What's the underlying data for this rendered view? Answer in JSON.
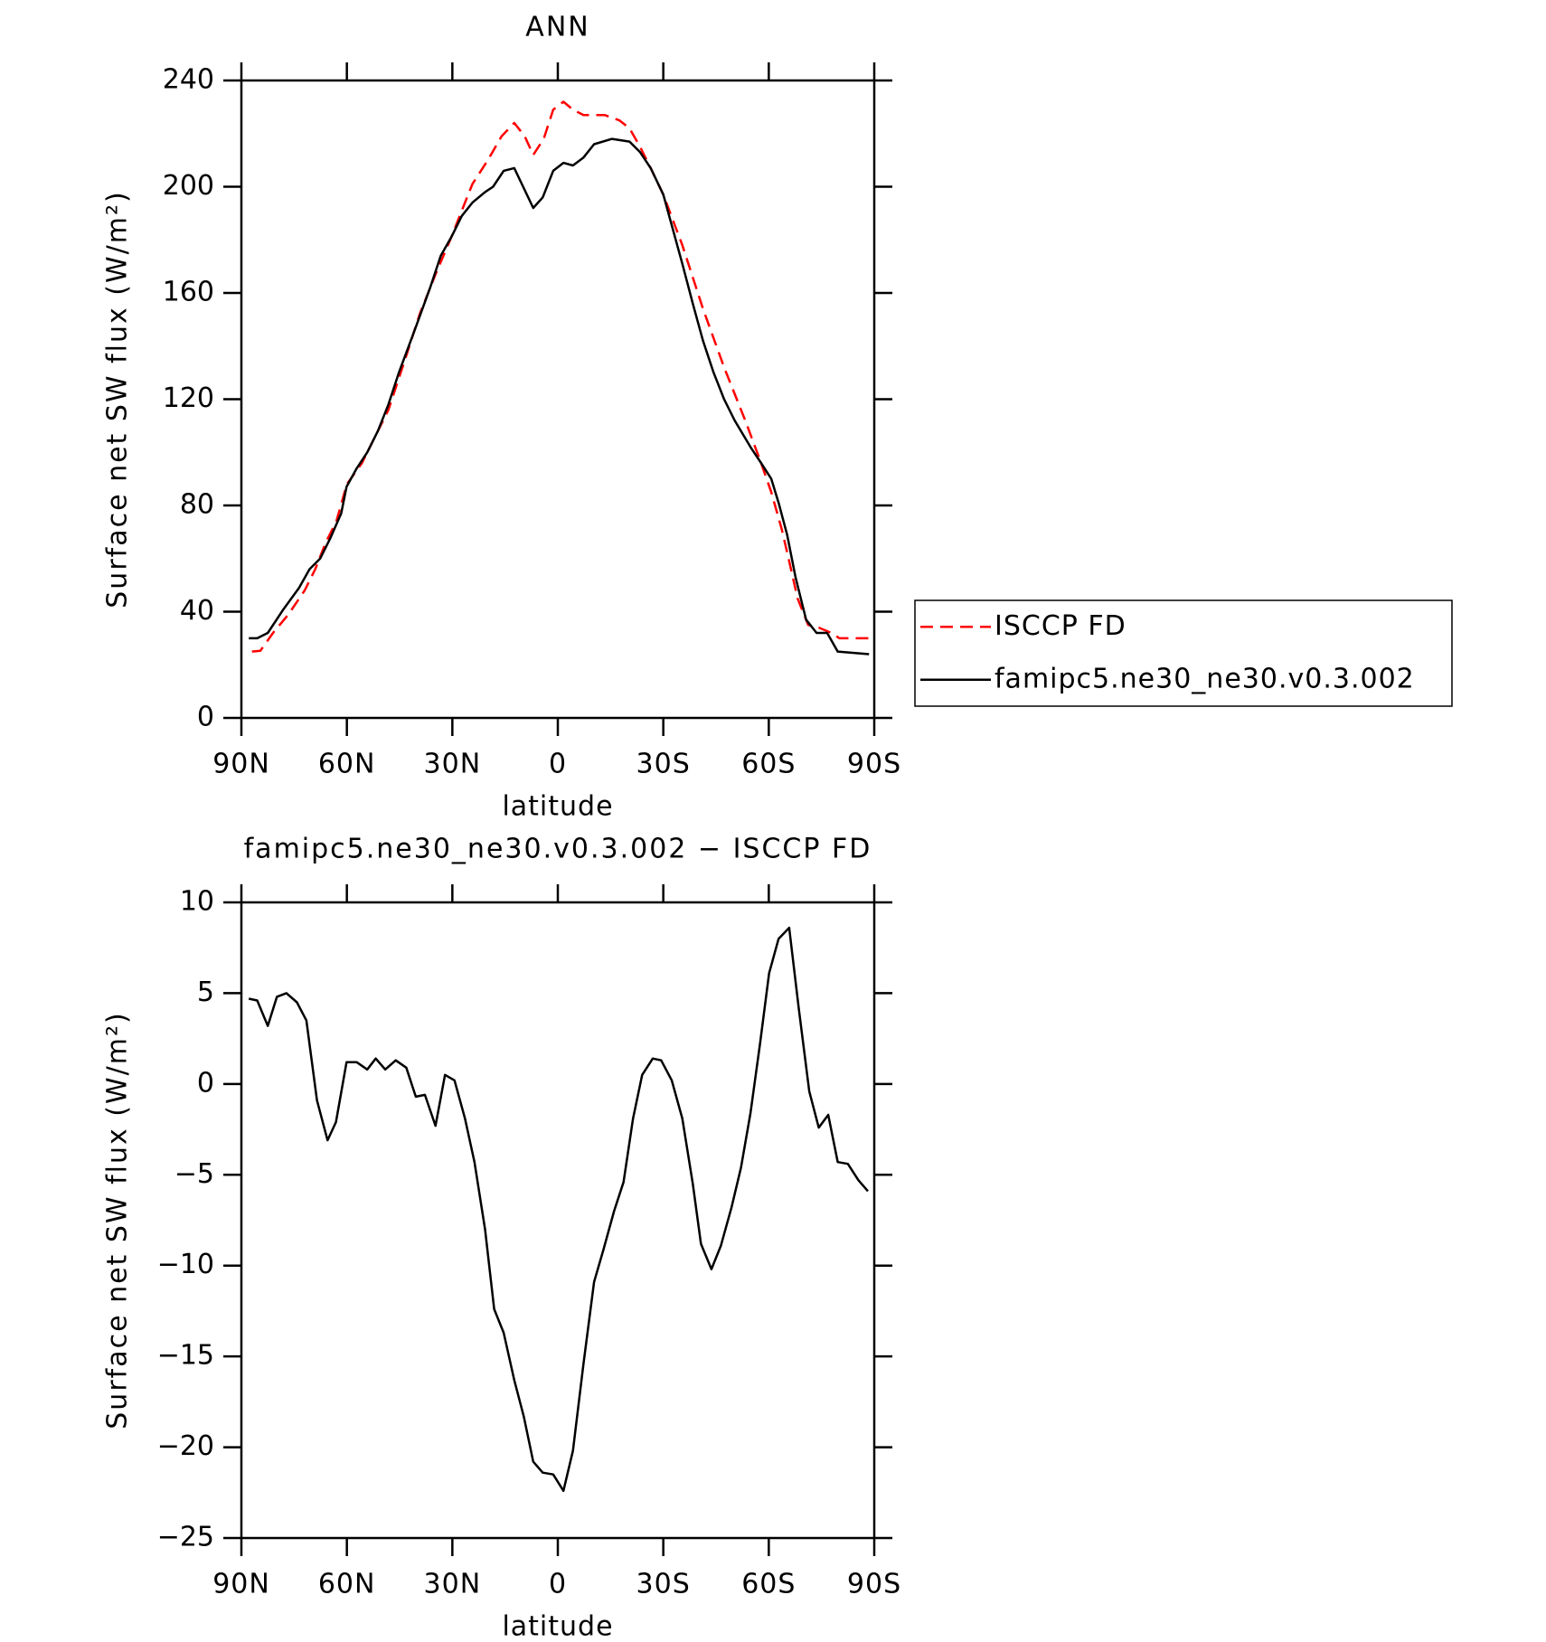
{
  "chart_data": [
    {
      "type": "line",
      "title": "ANN",
      "x_label": "latitude",
      "y_label": "Surface net SW flux (W/m²)",
      "xlim": [
        90,
        -90
      ],
      "xticks": [
        {
          "value": 90,
          "label": "90N"
        },
        {
          "value": 60,
          "label": "60N"
        },
        {
          "value": 30,
          "label": "30N"
        },
        0,
        {
          "value": -30,
          "label": "30S"
        },
        {
          "value": -60,
          "label": "60S"
        },
        {
          "value": -90,
          "label": "90S"
        }
      ],
      "ylim": [
        0,
        240
      ],
      "yticks": [
        0,
        40,
        80,
        120,
        160,
        200,
        240
      ],
      "legend": "right",
      "series": [
        {
          "name": "ISCCP FD",
          "color": "#ff0000",
          "line_style": "dashed",
          "x": [
            87,
            84.6,
            81,
            76.6,
            72,
            69,
            66,
            63,
            60,
            55.7,
            52.7,
            48.2,
            43.7,
            39.3,
            34.8,
            30.3,
            27.3,
            24.3,
            19.9,
            16,
            12.4,
            9.4,
            7,
            4,
            1.3,
            -1.6,
            -4.3,
            -7.3,
            -13.3,
            -17.5,
            -20.4,
            -23.4,
            -26.4,
            -30,
            -35.4,
            -41.3,
            -47.3,
            -53.3,
            -57.8,
            -60.7,
            -63.7,
            -65.8,
            -68.2,
            -71.2,
            -74.2,
            -77.8,
            -80.1,
            -84.6,
            -88.5
          ],
          "values": [
            25,
            25.3,
            32,
            39,
            48,
            56,
            66,
            74,
            88,
            96,
            104,
            116,
            134,
            152,
            167,
            181,
            191,
            201,
            210,
            219,
            224,
            219,
            212,
            218,
            229,
            232,
            229,
            227,
            227,
            225,
            222,
            215,
            207,
            197,
            178,
            154,
            132,
            112,
            96,
            85,
            71,
            59,
            45,
            35,
            34,
            32,
            30,
            30,
            30
          ]
        },
        {
          "name": "famipc5.ne30_ne30.v0.3.002",
          "color": "#000000",
          "line_style": "solid",
          "x": [
            87.9,
            85.5,
            82.5,
            78,
            73.6,
            70.6,
            67.6,
            64.6,
            61.6,
            60.1,
            57.2,
            54.2,
            51.2,
            48.2,
            45.2,
            40.7,
            36.3,
            33.3,
            30.3,
            27.3,
            24.3,
            20.7,
            18.4,
            15.4,
            12.4,
            7,
            4.3,
            1.3,
            -1.6,
            -4.3,
            -7.3,
            -10.3,
            -15.4,
            -20.4,
            -23.4,
            -26.4,
            -30,
            -35.4,
            -38.4,
            -41.3,
            -44.3,
            -47.3,
            -50.3,
            -54.8,
            -57.8,
            -60.7,
            -62.8,
            -65.2,
            -67.6,
            -70.6,
            -73.6,
            -76.6,
            -79.6,
            -88.5
          ],
          "values": [
            30,
            30,
            32,
            41,
            49,
            56,
            60,
            68,
            77,
            87,
            94,
            100,
            108,
            118,
            130,
            146,
            162,
            174,
            181,
            189,
            194,
            198,
            200,
            206,
            207,
            192,
            196,
            206,
            209,
            208,
            211,
            216,
            218,
            217,
            213,
            207,
            197,
            171,
            156,
            142,
            130,
            120,
            112,
            102,
            96,
            90,
            81,
            69,
            53,
            37,
            32,
            32,
            25,
            24
          ]
        }
      ]
    },
    {
      "type": "line",
      "title": "famipc5.ne30_ne30.v0.3.002 − ISCCP FD",
      "x_label": "latitude",
      "y_label": "Surface net SW flux (W/m²)",
      "xlim": [
        90,
        -90
      ],
      "xticks": [
        {
          "value": 90,
          "label": "90N"
        },
        {
          "value": 60,
          "label": "60N"
        },
        {
          "value": 30,
          "label": "30N"
        },
        0,
        {
          "value": -30,
          "label": "30S"
        },
        {
          "value": -60,
          "label": "60S"
        },
        {
          "value": -90,
          "label": "90S"
        }
      ],
      "ylim": [
        -25,
        10
      ],
      "yticks": [
        {
          "value": -25,
          "label": "−25"
        },
        {
          "value": -20,
          "label": "−20"
        },
        {
          "value": -15,
          "label": "−15"
        },
        {
          "value": -10,
          "label": "−10"
        },
        {
          "value": -5,
          "label": "−5"
        },
        0,
        5,
        10
      ],
      "color": "#000000",
      "x": [
        87.9,
        85.5,
        82.5,
        79.9,
        77.2,
        74.2,
        71.5,
        68.5,
        65.5,
        63.1,
        60.1,
        57.2,
        54.2,
        51.8,
        49.1,
        46.1,
        43.1,
        40.4,
        37.8,
        34.8,
        32.1,
        29.4,
        26.4,
        23.7,
        20.7,
        18.1,
        15.4,
        12.4,
        9.7,
        7,
        4.3,
        1.3,
        -1.6,
        -4.3,
        -7.3,
        -10.3,
        -13,
        -16,
        -18.7,
        -21.4,
        -24,
        -27,
        -29.4,
        -32.4,
        -35.4,
        -38.4,
        -40.7,
        -43.7,
        -46.4,
        -49.4,
        -52.1,
        -54.8,
        -57.5,
        -60.1,
        -62.8,
        -65.8,
        -68.5,
        -71.5,
        -74.2,
        -76.9,
        -79.6,
        -82.5,
        -85.5,
        -88.2
      ],
      "values": [
        4.7,
        4.6,
        3.2,
        4.8,
        5.0,
        4.5,
        3.5,
        -0.9,
        -3.1,
        -2.1,
        1.2,
        1.2,
        0.8,
        1.4,
        0.8,
        1.3,
        0.9,
        -0.7,
        -0.6,
        -2.3,
        0.5,
        0.2,
        -1.9,
        -4.3,
        -8.0,
        -12.4,
        -13.7,
        -16.3,
        -18.3,
        -20.8,
        -21.4,
        -21.5,
        -22.4,
        -20.2,
        -15.4,
        -10.9,
        -9.1,
        -7.0,
        -5.4,
        -1.9,
        0.5,
        1.4,
        1.3,
        0.2,
        -1.9,
        -5.5,
        -8.8,
        -10.2,
        -8.9,
        -6.8,
        -4.6,
        -1.6,
        2.2,
        6.1,
        8.0,
        8.6,
        4.2,
        -0.4,
        -2.4,
        -1.7,
        -4.3,
        -4.4,
        -5.3,
        -5.9
      ]
    }
  ]
}
